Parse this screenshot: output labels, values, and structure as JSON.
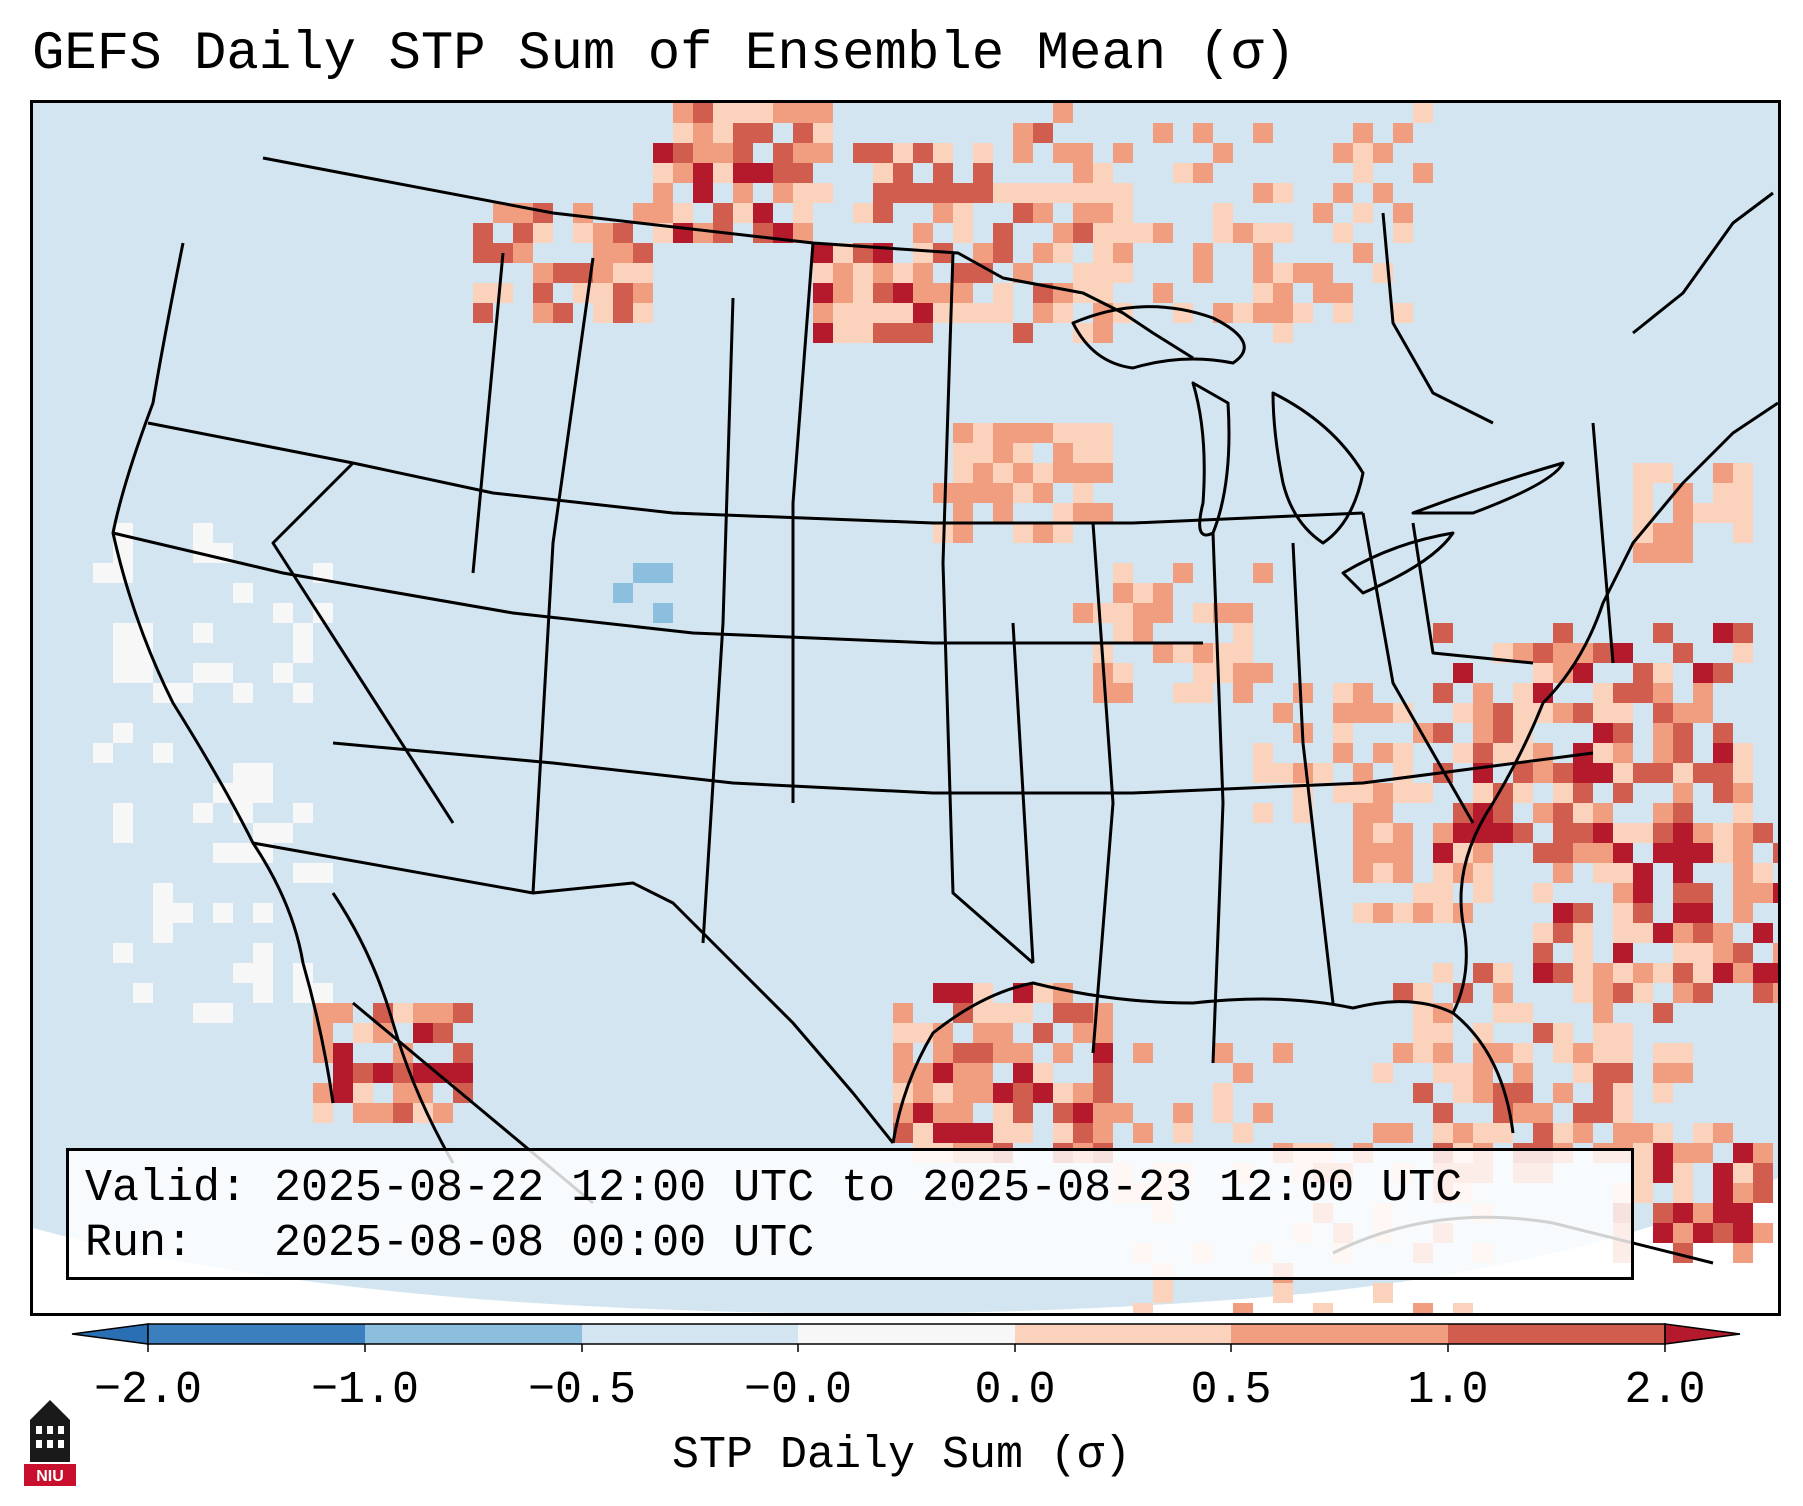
{
  "title": "GEFS Daily STP Sum of Ensemble Mean (σ)",
  "info": {
    "valid_line": "Valid: 2025-08-22 12:00 UTC to 2025-08-23 12:00 UTC",
    "run_line": "Run:   2025-08-08 00:00 UTC"
  },
  "colorbar": {
    "label": "STP Daily Sum (σ)",
    "tick_labels": [
      "−2.0",
      "−1.0",
      "−0.5",
      "−0.0",
      "0.0",
      "0.5",
      "1.0",
      "2.0"
    ],
    "colors": [
      "#3c7fbe",
      "#8cbfdd",
      "#d2e5f0",
      "#f7f7f7",
      "#fbd2bc",
      "#f09d80",
      "#d05d4e",
      "#b41a2b"
    ],
    "extend": "both"
  },
  "logo": {
    "text": "NIU",
    "description": "NIU-logo-icon"
  },
  "map": {
    "projection": "Lambert conformal, CONUS",
    "ocean_color": "#d2e5f0",
    "land_color": "#d2e5f0",
    "border_color": "#000000"
  }
}
